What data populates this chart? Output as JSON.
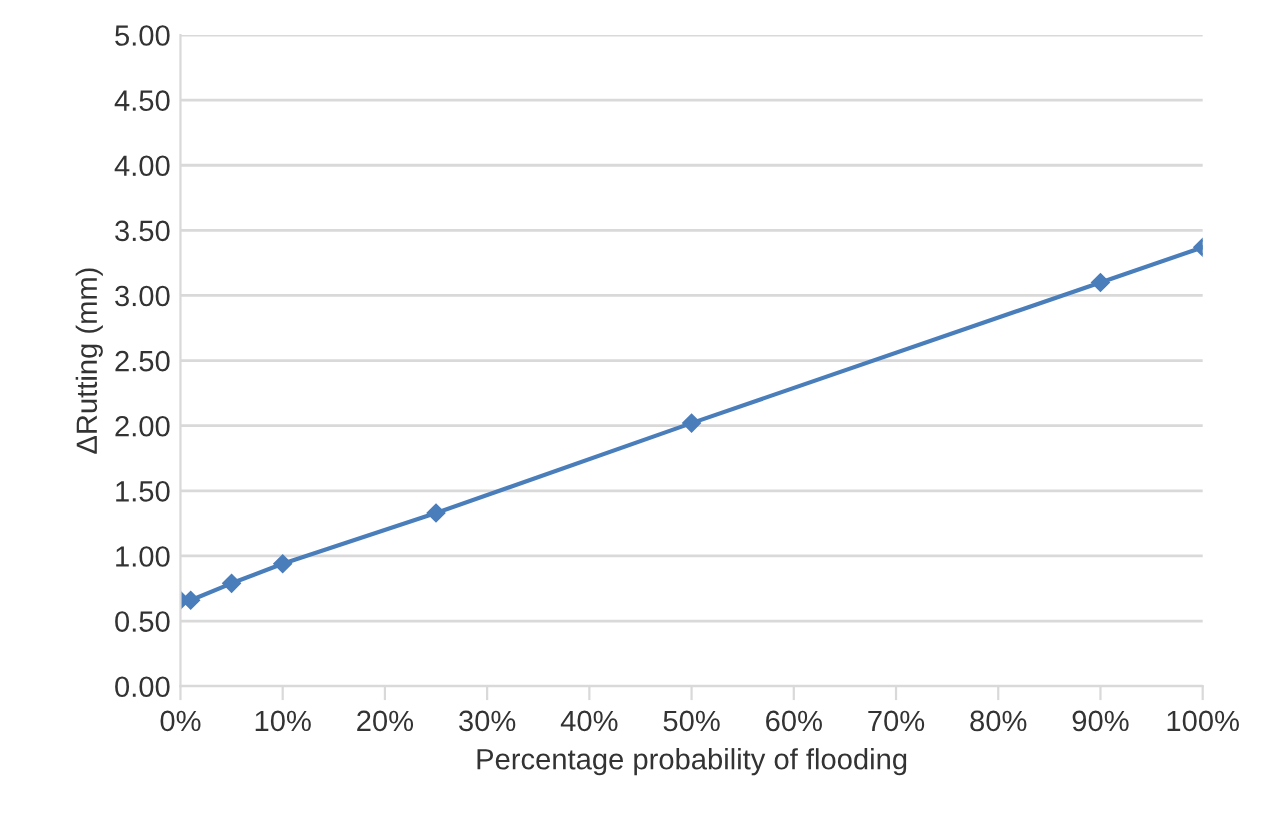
{
  "chart_data": {
    "type": "line",
    "xlabel": "Percentage probability of flooding",
    "ylabel": "ΔRutting (mm)",
    "x": [
      0,
      1,
      5,
      10,
      25,
      50,
      90,
      100
    ],
    "series": [
      {
        "color": "#4a7ebb",
        "values": [
          0.66,
          0.66,
          0.79,
          0.94,
          1.33,
          2.02,
          3.1,
          3.37
        ]
      }
    ],
    "marker": "diamond",
    "line_style": "solid",
    "grid": "y",
    "xlim": [
      0,
      100
    ],
    "xticks": [
      {
        "value": 0,
        "label": "0%"
      },
      {
        "value": 10,
        "label": "10%"
      },
      {
        "value": 20,
        "label": "20%"
      },
      {
        "value": 30,
        "label": "30%"
      },
      {
        "value": 40,
        "label": "40%"
      },
      {
        "value": 50,
        "label": "50%"
      },
      {
        "value": 60,
        "label": "60%"
      },
      {
        "value": 70,
        "label": "70%"
      },
      {
        "value": 80,
        "label": "80%"
      },
      {
        "value": 90,
        "label": "90%"
      },
      {
        "value": 100,
        "label": "100%"
      }
    ],
    "ylim": [
      0,
      5
    ],
    "yticks": [
      {
        "value": 0,
        "label": "0.00"
      },
      {
        "value": 0.5,
        "label": "0.50"
      },
      {
        "value": 1,
        "label": "1.00"
      },
      {
        "value": 1.5,
        "label": "1.50"
      },
      {
        "value": 2,
        "label": "2.00"
      },
      {
        "value": 2.5,
        "label": "2.50"
      },
      {
        "value": 3,
        "label": "3.00"
      },
      {
        "value": 3.5,
        "label": "3.50"
      },
      {
        "value": 4,
        "label": "4.00"
      },
      {
        "value": 4.5,
        "label": "4.50"
      },
      {
        "value": 5,
        "label": "5.00"
      }
    ]
  }
}
